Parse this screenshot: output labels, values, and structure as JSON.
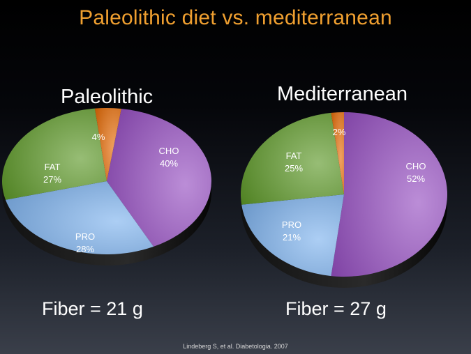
{
  "slide_title": "Paleolithic diet vs. mediterranean",
  "citation": "Lindeberg S, et al. Diabetologia. 2007",
  "colors": {
    "CHO": "#9650c2",
    "PRO": "#7fb3ee",
    "FAT": "#5f9a2a",
    "other": "#e8700d"
  },
  "chart_data": [
    {
      "type": "pie",
      "title": "Paleolithic",
      "footer": "Fiber = 21 g",
      "slices": [
        {
          "key": "CHO",
          "label": "CHO",
          "value": 40,
          "display": "40%"
        },
        {
          "key": "PRO",
          "label": "PRO",
          "value": 28,
          "display": "28%"
        },
        {
          "key": "FAT",
          "label": "FAT",
          "value": 27,
          "display": "27%"
        },
        {
          "key": "other",
          "label": "",
          "value": 4,
          "display": "4%"
        }
      ]
    },
    {
      "type": "pie",
      "title": "Mediterranean",
      "footer": "Fiber = 27 g",
      "slices": [
        {
          "key": "CHO",
          "label": "CHO",
          "value": 52,
          "display": "52%"
        },
        {
          "key": "PRO",
          "label": "PRO",
          "value": 21,
          "display": "21%"
        },
        {
          "key": "FAT",
          "label": "FAT",
          "value": 25,
          "display": "25%"
        },
        {
          "key": "other",
          "label": "",
          "value": 2,
          "display": "2%"
        }
      ]
    }
  ]
}
